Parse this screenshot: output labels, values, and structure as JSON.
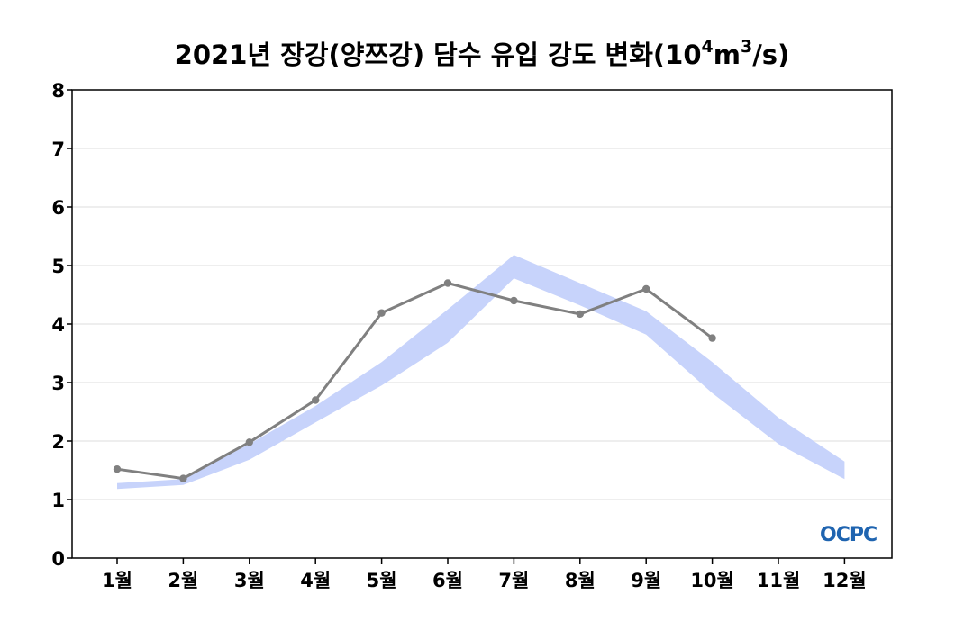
{
  "title": {
    "main": "2021년 장강(양쯔강) 담수 유입 강도 변화(10",
    "sup1": "4",
    "mid": "m",
    "sup2": "3",
    "end": "/s)"
  },
  "watermark": "OCPC",
  "colors": {
    "band": "#c7d3fb",
    "line": "#808080",
    "grid": "#dddddd",
    "axis": "#000000"
  },
  "chart_data": {
    "type": "line",
    "categories": [
      "1월",
      "2월",
      "3월",
      "4월",
      "5월",
      "6월",
      "7월",
      "8월",
      "9월",
      "10월",
      "11월",
      "12월"
    ],
    "ylim": [
      0,
      8
    ],
    "yticks": [
      0,
      1,
      2,
      3,
      4,
      5,
      6,
      7,
      8
    ],
    "grid": true,
    "band": {
      "low": [
        1.18,
        1.25,
        1.68,
        2.32,
        2.95,
        3.68,
        4.78,
        4.32,
        3.82,
        2.82,
        1.95,
        1.35
      ],
      "high": [
        1.28,
        1.35,
        1.95,
        2.6,
        3.35,
        4.25,
        5.18,
        4.7,
        4.22,
        3.35,
        2.4,
        1.65
      ]
    },
    "series": [
      {
        "values": [
          1.52,
          1.36,
          1.98,
          2.7,
          4.19,
          4.7,
          4.4,
          4.17,
          4.6,
          3.76,
          null,
          null
        ]
      }
    ]
  }
}
